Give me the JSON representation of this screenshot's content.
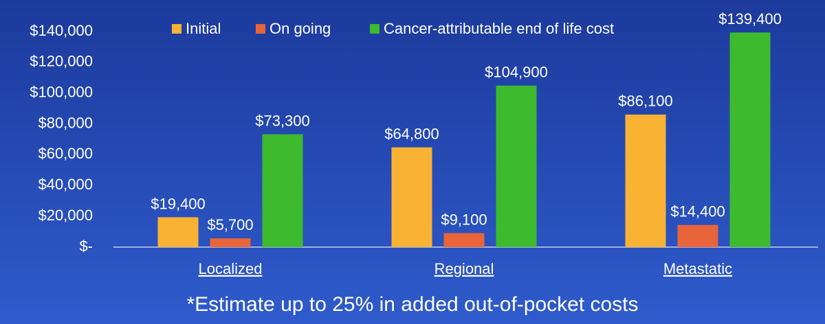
{
  "chart_data": {
    "type": "bar",
    "categories": [
      "Localized",
      "Regional",
      "Metastatic"
    ],
    "series": [
      {
        "name": "Initial",
        "color": "#f9b233",
        "values": [
          19400,
          64800,
          86100
        ],
        "value_labels": [
          "$19,400",
          "$64,800",
          "$86,100"
        ]
      },
      {
        "name": "On going",
        "color": "#e8643a",
        "values": [
          5700,
          9100,
          14400
        ],
        "value_labels": [
          "$5,700",
          "$9,100",
          "$14,400"
        ]
      },
      {
        "name": "Cancer-attributable end of life cost",
        "color": "#3dba2e",
        "values": [
          73300,
          104900,
          139400
        ],
        "value_labels": [
          "$73,300",
          "$104,900",
          "$139,400"
        ]
      }
    ],
    "ylim": [
      0,
      140000
    ],
    "yticks": [
      {
        "value": 0,
        "label": "$-"
      },
      {
        "value": 20000,
        "label": "$20,000"
      },
      {
        "value": 40000,
        "label": "$40,000"
      },
      {
        "value": 60000,
        "label": "$60,000"
      },
      {
        "value": 80000,
        "label": "$80,000"
      },
      {
        "value": 100000,
        "label": "$100,000"
      },
      {
        "value": 120000,
        "label": "$120,000"
      },
      {
        "value": 140000,
        "label": "$140,000"
      }
    ],
    "annotation": "*Estimate up to 25% in added out-of-pocket costs"
  }
}
